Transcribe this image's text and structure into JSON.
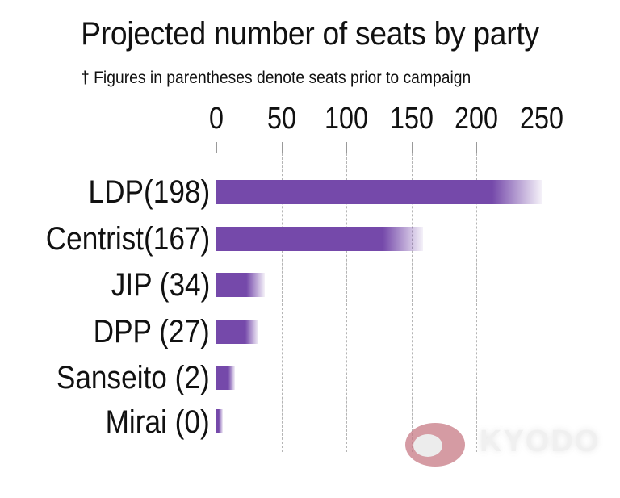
{
  "chart_data": {
    "type": "bar",
    "orientation": "horizontal",
    "title": "Projected number of seats by party",
    "subtitle": "† Figures in parentheses denote seats prior to campaign",
    "xlabel": "",
    "ylabel": "",
    "xlim": [
      0,
      260
    ],
    "x_ticks": [
      0,
      50,
      100,
      150,
      200,
      250
    ],
    "grid": "vertical dashed",
    "legend": "none",
    "bar_color": "#7549aa",
    "bars_represent": "projected seat range (solid = lower bound, faded gradient = upper bound)",
    "categories": [
      "LDP",
      "Centrist",
      "JIP",
      "DPP",
      "Sanseito",
      "Mirai"
    ],
    "prior_seats": [
      198,
      167,
      34,
      27,
      2,
      0
    ],
    "series": [
      {
        "name": "Projected low",
        "values": [
          212,
          128,
          23,
          22,
          9,
          0
        ]
      },
      {
        "name": "Projected high",
        "values": [
          250,
          159,
          37,
          32,
          14,
          5
        ]
      }
    ],
    "annotations": [
      "KYODO watermark"
    ]
  },
  "header": {
    "title": "Projected number of seats by party",
    "subtitle": "† Figures in parentheses denote seats prior to campaign"
  },
  "axis": {
    "ticks": [
      "0",
      "50",
      "100",
      "150",
      "200",
      "250"
    ]
  },
  "rows": [
    {
      "label": "LDP(198)"
    },
    {
      "label": "Centrist(167)"
    },
    {
      "label": "JIP (34)"
    },
    {
      "label": "DPP (27)"
    },
    {
      "label": "Sanseito (2)"
    },
    {
      "label": "Mirai (0)"
    }
  ],
  "watermark": {
    "text": "KYODO"
  }
}
